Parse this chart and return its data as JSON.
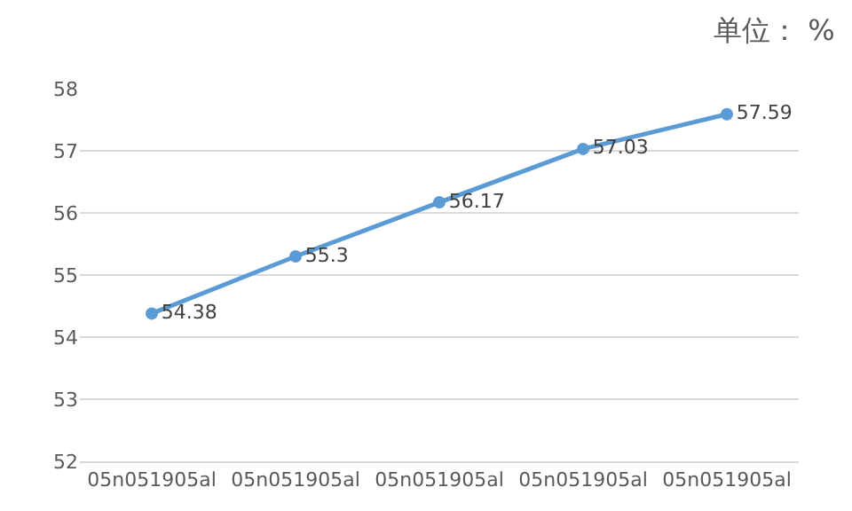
{
  "chart_data": {
    "type": "line",
    "title": "单位： %",
    "categories": [
      "05n051905al",
      "05n051905al",
      "05n051905al",
      "05n051905al",
      "05n051905al"
    ],
    "series": [
      {
        "color": "#5b9bd5",
        "values": [
          54.38,
          55.3,
          56.17,
          57.03,
          57.59
        ]
      }
    ],
    "ylim": [
      52,
      58
    ],
    "yticks": [
      52,
      53,
      54,
      55,
      56,
      57,
      58
    ],
    "grid": "y",
    "marker": "circle",
    "line_style": "solid",
    "data_labels": true
  }
}
